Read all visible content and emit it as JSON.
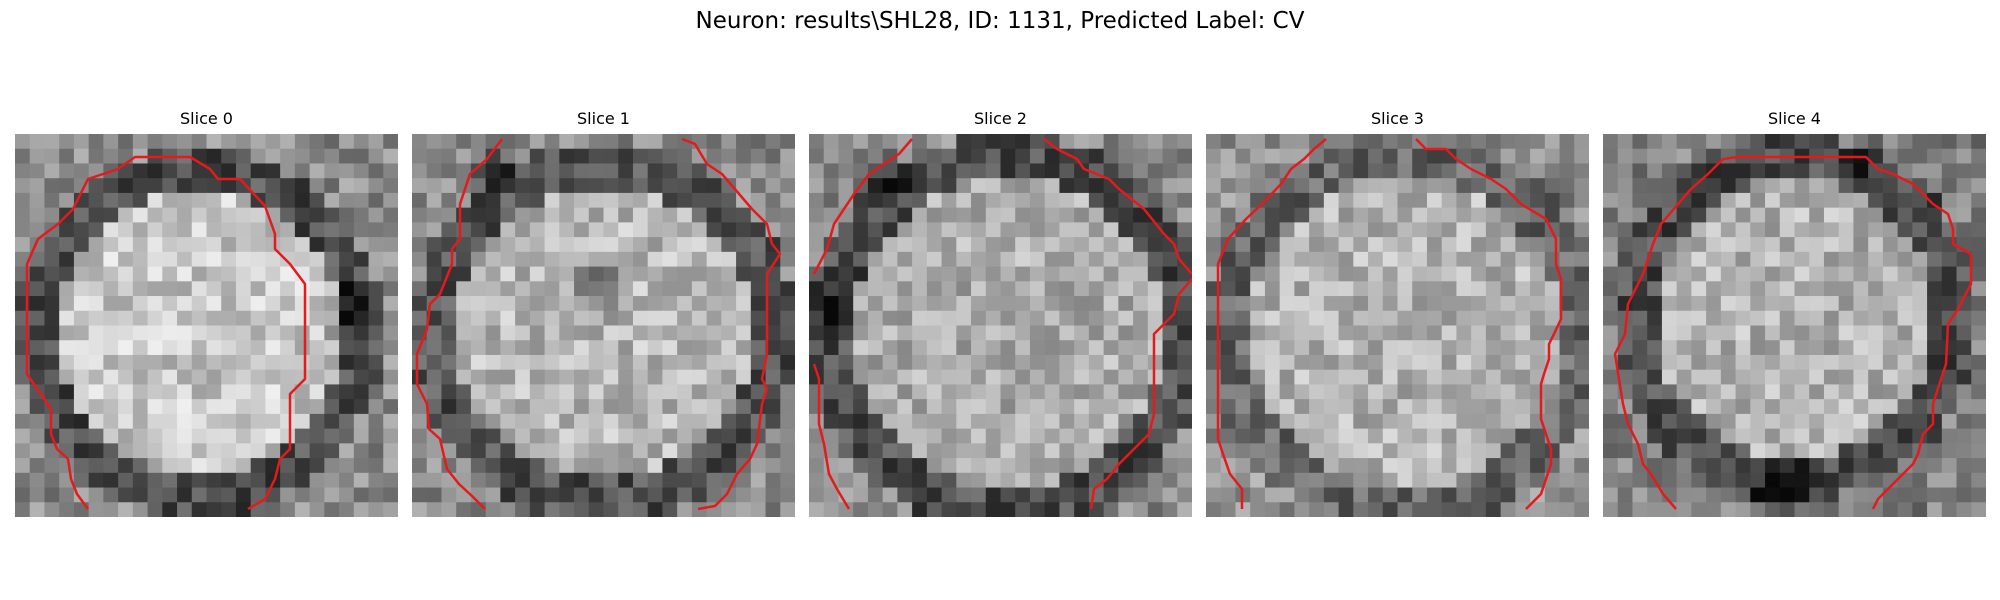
{
  "figure": {
    "title": "Neuron: results\\SHL28, ID: 1131, Predicted Label: CV"
  },
  "slices": [
    {
      "title": "Slice 0"
    },
    {
      "title": "Slice 1"
    },
    {
      "title": "Slice 2"
    },
    {
      "title": "Slice 3"
    },
    {
      "title": "Slice 4"
    }
  ],
  "colors": {
    "contour": "#e41a1c",
    "background": "#ffffff"
  }
}
